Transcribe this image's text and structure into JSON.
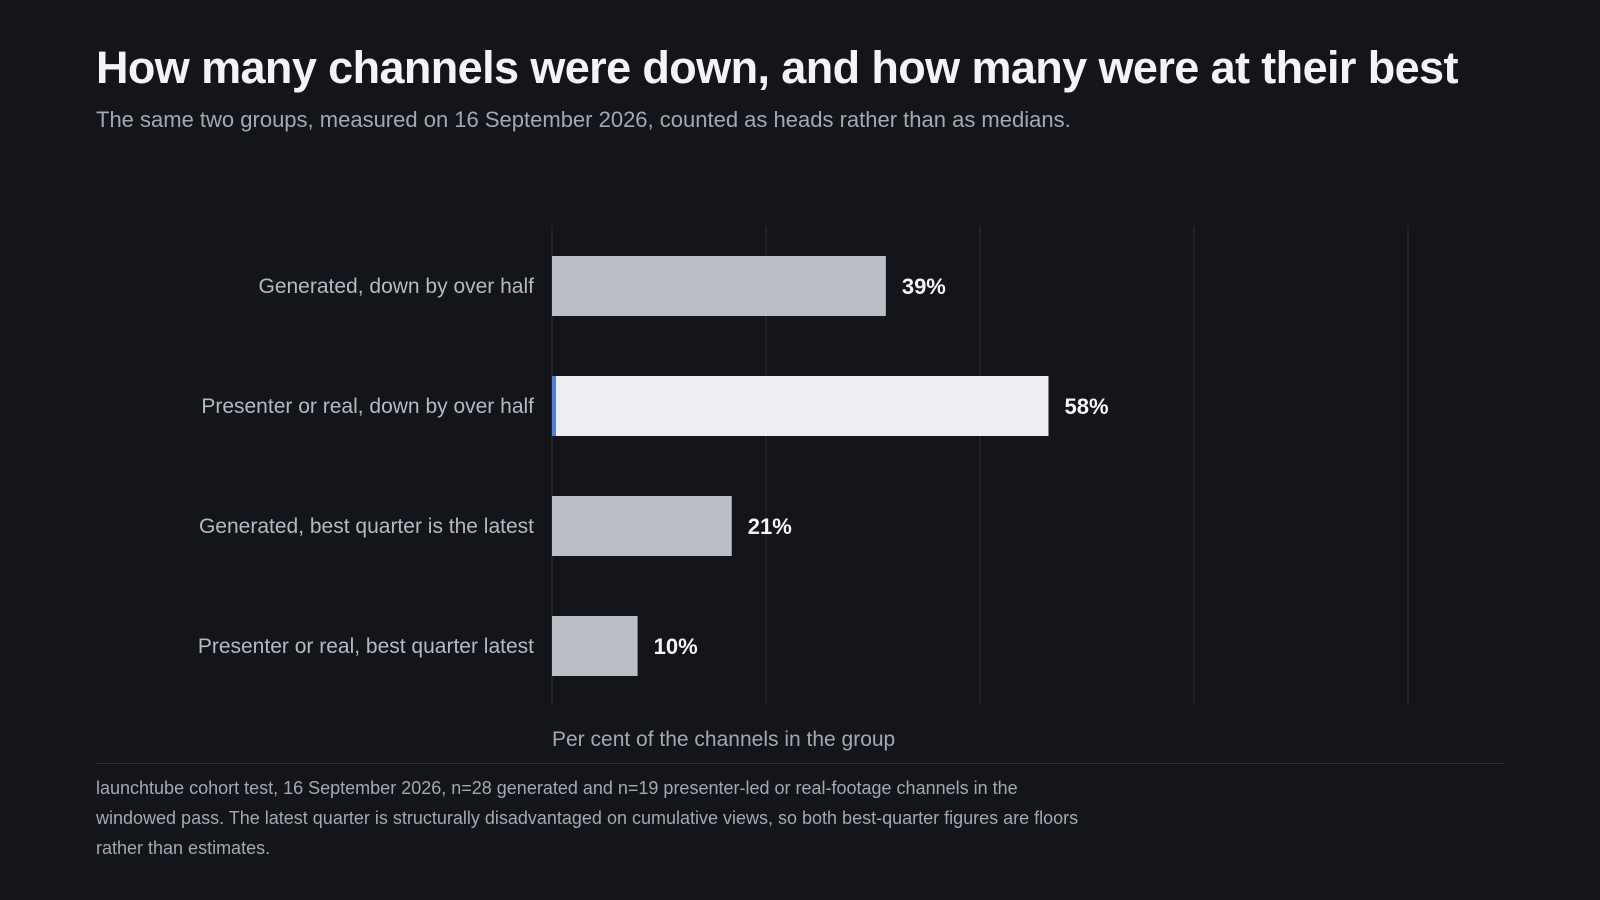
{
  "title": "How many channels were down, and how many were at their best",
  "subtitle": "The same two groups, measured on 16 September 2026, counted as heads rather than as medians.",
  "note": "launchtube cohort test, 16 September 2026, n=28 generated and n=19 presenter-led or real-footage channels in the windowed pass. The latest quarter is structurally disadvantaged on cumulative views, so both best-quarter figures are floors rather than estimates.",
  "colors": {
    "background": "#14151a",
    "bar": "#babec5",
    "bar_highlight": "#eceef1",
    "highlight_edge": "#4f7fd6",
    "grid": "#2c2e36"
  },
  "chart_data": {
    "type": "bar",
    "orientation": "horizontal",
    "categories": [
      "Generated, down by over half",
      "Presenter or real, down by over half",
      "Generated, best quarter is the latest",
      "Presenter or real, best quarter latest"
    ],
    "values": [
      39,
      58,
      21,
      10
    ],
    "value_labels": [
      "39%",
      "58%",
      "21%",
      "10%"
    ],
    "highlighted_index": 1,
    "xlabel": "Per cent of the channels in the group",
    "xlim": [
      0,
      100
    ],
    "gridlines": [
      0,
      25,
      50,
      75,
      100
    ],
    "grid": true,
    "legend": false
  }
}
